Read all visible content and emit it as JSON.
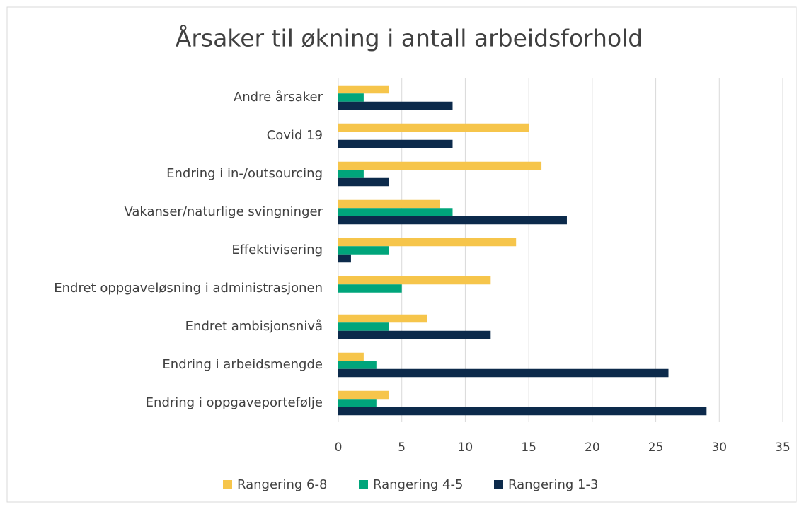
{
  "chart_data": {
    "type": "hbar",
    "title": "Årsaker til økning i antall arbeidsforhold",
    "categories": [
      "Andre årsaker",
      "Covid 19",
      "Endring i in-/outsourcing",
      "Vakanser/naturlige svingninger",
      "Effektivisering",
      "Endret oppgaveløsning i administrasjonen",
      "Endret ambisjonsnivå",
      "Endring i arbeidsmengde",
      "Endring i oppgaveportefølje"
    ],
    "series": [
      {
        "name": "Rangering 6-8",
        "color": "#f6c54b",
        "values": [
          4,
          15,
          16,
          8,
          14,
          12,
          7,
          2,
          4
        ]
      },
      {
        "name": "Rangering 4-5",
        "color": "#00a57b",
        "values": [
          2,
          0,
          2,
          9,
          4,
          5,
          4,
          3,
          3
        ]
      },
      {
        "name": "Rangering 1-3",
        "color": "#0c2a4b",
        "values": [
          9,
          9,
          4,
          18,
          1,
          0,
          12,
          26,
          29
        ]
      }
    ],
    "xlim": [
      0,
      35
    ],
    "xticks": [
      0,
      5,
      10,
      15,
      20,
      25,
      30,
      35
    ],
    "grid": true,
    "legend": "bottom"
  }
}
